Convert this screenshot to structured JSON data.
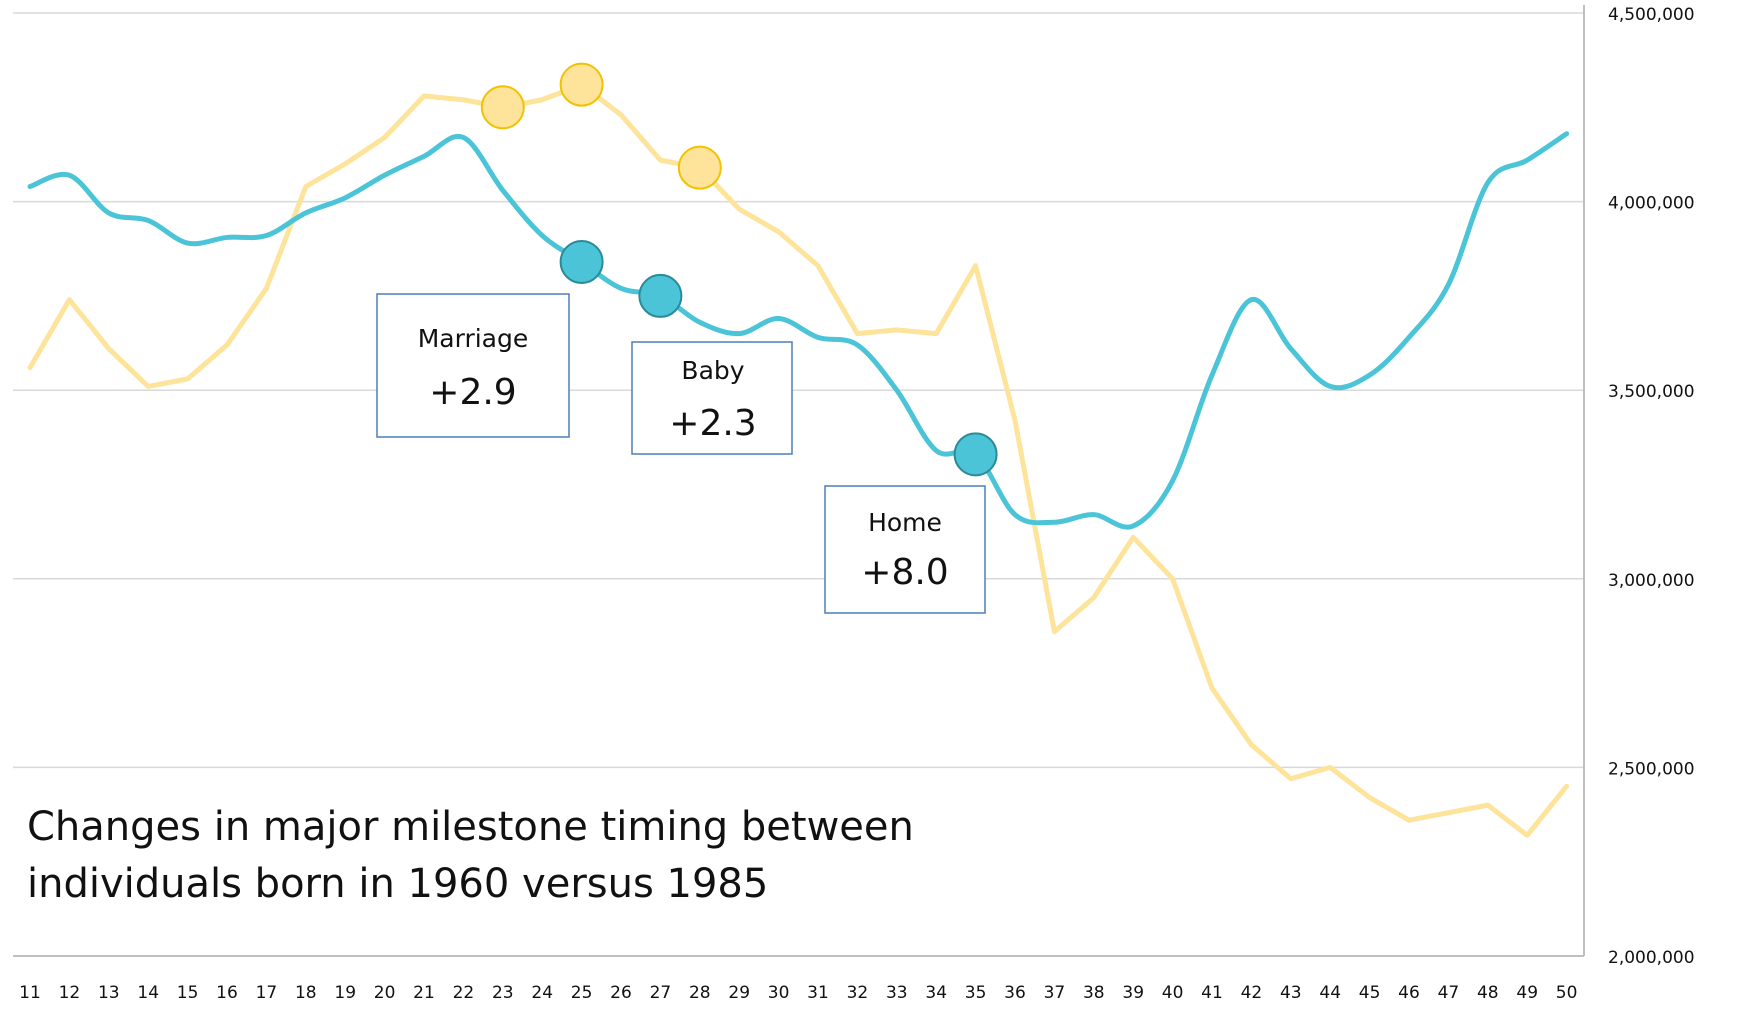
{
  "chart_data": {
    "type": "line",
    "title": [
      "Changes  in major milestone timing between",
      "individuals born in 1960 versus 1985"
    ],
    "categories": [
      "11",
      "12",
      "13",
      "14",
      "15",
      "16",
      "17",
      "18",
      "19",
      "20",
      "21",
      "22",
      "23",
      "24",
      "25",
      "26",
      "27",
      "28",
      "29",
      "30",
      "31",
      "32",
      "33",
      "34",
      "35",
      "36",
      "37",
      "38",
      "39",
      "40",
      "41",
      "42",
      "43",
      "44",
      "45",
      "46",
      "47",
      "48",
      "49",
      "50"
    ],
    "series": [
      {
        "color": "#fde49a",
        "smooth": false,
        "markers": [
          "23",
          "25",
          "28"
        ],
        "values": [
          3560000,
          3740000,
          3610000,
          3510000,
          3530000,
          3620000,
          3770000,
          4040000,
          4100000,
          4170000,
          4280000,
          4270000,
          4250000,
          4270000,
          4310000,
          4230000,
          4110000,
          4090000,
          3980000,
          3920000,
          3830000,
          3650000,
          3660000,
          3650000,
          3830000,
          3420000,
          2860000,
          2950000,
          3110000,
          3000000,
          2710000,
          2560000,
          2470000,
          2500000,
          2420000,
          2360000,
          2380000,
          2400000,
          2320000,
          2450000
        ]
      },
      {
        "color": "#4bc4d7",
        "smooth": true,
        "markers": [
          "25",
          "27",
          "35"
        ],
        "values": [
          4040000,
          4070000,
          3970000,
          3950000,
          3890000,
          3905000,
          3910000,
          3970000,
          4010000,
          4070000,
          4120000,
          4170000,
          4030000,
          3910000,
          3840000,
          3770000,
          3750000,
          3680000,
          3650000,
          3690000,
          3640000,
          3620000,
          3500000,
          3340000,
          3330000,
          3170000,
          3150000,
          3170000,
          3140000,
          3260000,
          3540000,
          3740000,
          3610000,
          3510000,
          3540000,
          3640000,
          3780000,
          4050000,
          4110000,
          4180000
        ]
      }
    ],
    "annotations": [
      {
        "label": "Marriage",
        "text": "+2.9"
      },
      {
        "label": "Baby",
        "text": "+2.3"
      },
      {
        "label": "Home",
        "text": "+8.0"
      }
    ],
    "ylim": [
      2000000,
      4500000
    ],
    "yticks": [
      {
        "value": 2000000,
        "label": "2,000,000"
      },
      {
        "value": 2500000,
        "label": "2,500,000"
      },
      {
        "value": 3000000,
        "label": "3,000,000"
      },
      {
        "value": 3500000,
        "label": "3,500,000"
      },
      {
        "value": 4000000,
        "label": "4,000,000"
      },
      {
        "value": 4500000,
        "label": "4,500,000"
      }
    ],
    "grid": true
  }
}
